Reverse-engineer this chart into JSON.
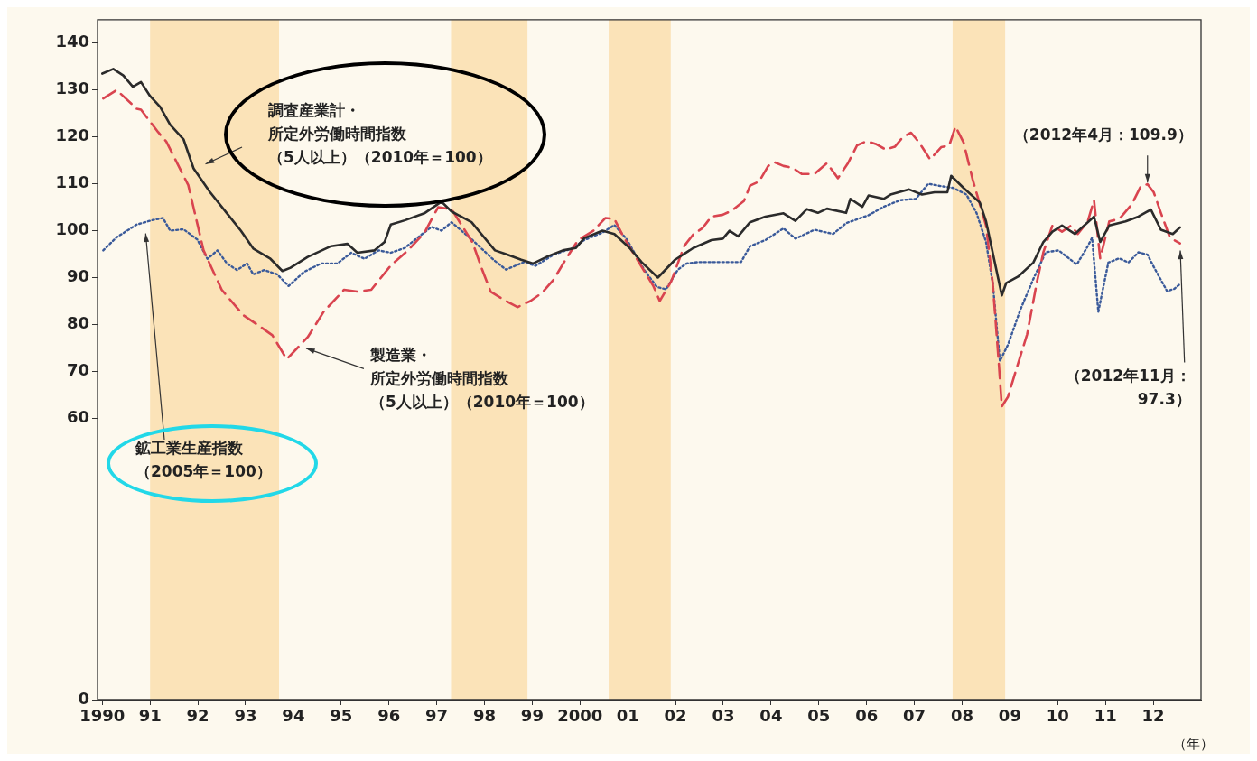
{
  "chart_data": {
    "type": "line",
    "xlabel": "（年）",
    "xlim": [
      1989.9,
      2013
    ],
    "xticks": [
      {
        "value": 1990,
        "label": "1990"
      },
      {
        "value": 1991,
        "label": "91"
      },
      {
        "value": 1992,
        "label": "92"
      },
      {
        "value": 1993,
        "label": "93"
      },
      {
        "value": 1994,
        "label": "94"
      },
      {
        "value": 1995,
        "label": "95"
      },
      {
        "value": 1996,
        "label": "96"
      },
      {
        "value": 1997,
        "label": "97"
      },
      {
        "value": 1998,
        "label": "98"
      },
      {
        "value": 1999,
        "label": "99"
      },
      {
        "value": 2000,
        "label": "2000"
      },
      {
        "value": 2001,
        "label": "01"
      },
      {
        "value": 2002,
        "label": "02"
      },
      {
        "value": 2003,
        "label": "03"
      },
      {
        "value": 2004,
        "label": "04"
      },
      {
        "value": 2005,
        "label": "05"
      },
      {
        "value": 2006,
        "label": "06"
      },
      {
        "value": 2007,
        "label": "07"
      },
      {
        "value": 2008,
        "label": "08"
      },
      {
        "value": 2009,
        "label": "09"
      },
      {
        "value": 2010,
        "label": "10"
      },
      {
        "value": 2011,
        "label": "11"
      },
      {
        "value": 2012,
        "label": "12"
      }
    ],
    "ylim": [
      0,
      145
    ],
    "yticks": [
      0,
      60,
      70,
      80,
      90,
      100,
      110,
      120,
      130,
      140
    ],
    "bands": [
      {
        "axis": "x",
        "from": 1991.0,
        "to": 1993.7,
        "color": "#fbe3b8"
      },
      {
        "axis": "x",
        "from": 1997.3,
        "to": 1998.9,
        "color": "#fbe3b8"
      },
      {
        "axis": "x",
        "from": 2000.6,
        "to": 2001.9,
        "color": "#fbe3b8"
      },
      {
        "axis": "x",
        "from": 2007.8,
        "to": 2008.9,
        "color": "#fbe3b8"
      }
    ],
    "series": [
      {
        "color": "#2b2b2b",
        "line_style": "solid",
        "x": [
          1990.0,
          1990.23,
          1990.44,
          1990.64,
          1990.81,
          1991.0,
          1991.21,
          1991.42,
          1991.7,
          1991.91,
          1992.25,
          1992.61,
          1992.9,
          1993.16,
          1993.52,
          1993.77,
          1993.94,
          1994.3,
          1994.79,
          1995.13,
          1995.34,
          1995.7,
          1995.91,
          1996.04,
          1996.33,
          1996.74,
          1997.1,
          1997.31,
          1997.73,
          1998.22,
          1998.45,
          1998.77,
          1999.02,
          1999.34,
          1999.64,
          1999.91,
          2000.09,
          2000.47,
          2000.72,
          2001.04,
          2001.29,
          2001.63,
          2001.99,
          2002.37,
          2002.75,
          2002.99,
          2003.13,
          2003.31,
          2003.56,
          2003.88,
          2004.26,
          2004.51,
          2004.75,
          2004.98,
          2005.17,
          2005.57,
          2005.66,
          2005.91,
          2006.04,
          2006.36,
          2006.5,
          2006.89,
          2007.16,
          2007.42,
          2007.69,
          2007.77,
          2008.03,
          2008.37,
          2008.5,
          2008.83,
          2008.92,
          2009.17,
          2009.49,
          2009.7,
          2009.89,
          2010.09,
          2010.36,
          2010.76,
          2010.89,
          2011.08,
          2011.42,
          2011.69,
          2011.95,
          2012.16,
          2012.41,
          2012.56
        ],
        "values": [
          133.5,
          134.5,
          133.1,
          130.7,
          131.7,
          128.7,
          126.4,
          122.6,
          119.5,
          113.3,
          108.3,
          103.7,
          100,
          96.2,
          94,
          91.4,
          92.1,
          94.4,
          96.7,
          97.2,
          95.3,
          95.8,
          97.6,
          101.3,
          102.2,
          103.7,
          106.2,
          104.1,
          101.8,
          95.8,
          95,
          93.8,
          93,
          94.6,
          95.8,
          96.3,
          98.4,
          100,
          99.3,
          96.3,
          93.3,
          90,
          93.8,
          96.3,
          98,
          98.3,
          100,
          98.8,
          101.8,
          103,
          103.7,
          102.1,
          104.6,
          103.8,
          104.7,
          103.8,
          106.8,
          105.1,
          107.5,
          106.8,
          107.7,
          108.8,
          107.7,
          108.2,
          108.2,
          111.7,
          109.1,
          106,
          102,
          86.2,
          88.8,
          90.2,
          93.2,
          97.6,
          99.8,
          101.1,
          99.3,
          103,
          97.6,
          101.1,
          102,
          103,
          104.5,
          100.2,
          99.3,
          100.7
        ]
      },
      {
        "color": "#d9444f",
        "line_style": "dashed",
        "x": [
          1990.02,
          1990.3,
          1990.72,
          1990.81,
          1991.17,
          1991.34,
          1991.8,
          1992.12,
          1992.5,
          1992.95,
          1993.24,
          1993.56,
          1993.86,
          1994.3,
          1994.64,
          1995.06,
          1995.34,
          1995.63,
          1996.04,
          1996.4,
          1996.74,
          1997.03,
          1997.31,
          1997.75,
          1997.94,
          1998.13,
          1998.45,
          1998.69,
          1998.96,
          1999.2,
          1999.45,
          1999.72,
          1999.96,
          2000.28,
          2000.53,
          2000.72,
          2000.91,
          2001.23,
          2001.53,
          2001.67,
          2001.91,
          2002.18,
          2002.37,
          2002.56,
          2002.75,
          2002.99,
          2003.18,
          2003.43,
          2003.56,
          2003.75,
          2003.94,
          2004.07,
          2004.26,
          2004.45,
          2004.64,
          2004.91,
          2005.17,
          2005.4,
          2005.61,
          2005.8,
          2006.0,
          2006.19,
          2006.4,
          2006.59,
          2006.76,
          2006.93,
          2007.1,
          2007.33,
          2007.56,
          2007.73,
          2007.86,
          2008.03,
          2008.22,
          2008.5,
          2008.64,
          2008.77,
          2008.83,
          2008.96,
          2009.09,
          2009.36,
          2009.56,
          2009.7,
          2009.89,
          2010.09,
          2010.28,
          2010.42,
          2010.63,
          2010.76,
          2010.89,
          2011.08,
          2011.29,
          2011.55,
          2011.74,
          2011.88,
          2012.01,
          2012.16,
          2012.35,
          2012.56
        ],
        "values": [
          128.2,
          130,
          126,
          125.8,
          121,
          119,
          109.7,
          95.8,
          87.4,
          82,
          80,
          77.7,
          72.6,
          77.3,
          82.8,
          87.4,
          87,
          87.4,
          92.6,
          95.8,
          99.5,
          105,
          104.6,
          97.5,
          92,
          87,
          85,
          83.7,
          85,
          86.7,
          89.6,
          94.2,
          98,
          100,
          102.7,
          102.5,
          98.7,
          93.3,
          88.3,
          85,
          89.2,
          96.7,
          99.2,
          100.5,
          103,
          103.4,
          104.3,
          106.3,
          109.6,
          110.5,
          113.8,
          114.6,
          113.8,
          113.4,
          112.1,
          112.1,
          114.4,
          111.2,
          114.4,
          118.2,
          119.1,
          118.5,
          117.3,
          117.9,
          120,
          120.9,
          118.8,
          115.2,
          117.8,
          118.2,
          122.2,
          118.8,
          110.9,
          101.1,
          88.8,
          71.3,
          62.5,
          64.6,
          69,
          77.9,
          88.8,
          95.4,
          101.1,
          99.8,
          101.1,
          99.3,
          102,
          106.5,
          94.1,
          102,
          102.5,
          105.6,
          109.5,
          109.9,
          108.2,
          103.8,
          98.5,
          97.3
        ]
      },
      {
        "color": "#3a5a9a",
        "line_style": "dotted",
        "x": [
          1990.02,
          1990.3,
          1990.72,
          1991.06,
          1991.27,
          1991.42,
          1991.7,
          1991.99,
          1992.2,
          1992.41,
          1992.61,
          1992.82,
          1993.03,
          1993.16,
          1993.39,
          1993.66,
          1993.9,
          1994.22,
          1994.58,
          1994.92,
          1995.21,
          1995.49,
          1995.78,
          1996.04,
          1996.33,
          1996.61,
          1996.89,
          1997.1,
          1997.31,
          1997.75,
          1998.2,
          1998.45,
          1998.83,
          1999.07,
          1999.45,
          1999.83,
          2000.09,
          2000.47,
          2000.72,
          2000.97,
          2001.34,
          2001.61,
          2001.8,
          2002.05,
          2002.23,
          2002.48,
          2002.94,
          2003.37,
          2003.56,
          2003.88,
          2004.26,
          2004.51,
          2004.91,
          2005.3,
          2005.57,
          2006.04,
          2006.36,
          2006.7,
          2007.03,
          2007.29,
          2007.56,
          2007.82,
          2008.09,
          2008.3,
          2008.5,
          2008.64,
          2008.79,
          2008.96,
          2009.22,
          2009.49,
          2009.75,
          2010.02,
          2010.4,
          2010.63,
          2010.72,
          2010.85,
          2011.06,
          2011.29,
          2011.48,
          2011.69,
          2011.88,
          2012.01,
          2012.29,
          2012.44,
          2012.58
        ],
        "values": [
          95.8,
          98.6,
          101.3,
          102.3,
          102.7,
          100,
          100.3,
          98.1,
          94,
          95.8,
          93,
          91.6,
          93,
          90.7,
          91.6,
          90.7,
          88.2,
          91.2,
          93,
          93,
          95.3,
          94,
          95.8,
          95.3,
          96.3,
          98.6,
          100.8,
          100,
          101.8,
          98,
          93.7,
          91.7,
          93.3,
          92.5,
          94.9,
          96.2,
          98,
          99.6,
          101.2,
          98.3,
          91.7,
          88,
          87.5,
          91.7,
          93,
          93.3,
          93.3,
          93.3,
          96.7,
          98,
          100.5,
          98.3,
          100.2,
          99.3,
          101.6,
          103.3,
          105.1,
          106.5,
          106.8,
          110,
          109.5,
          109.1,
          107.7,
          103.8,
          97.6,
          88.8,
          72.2,
          75.7,
          83.2,
          89.7,
          95.4,
          95.8,
          92.8,
          96.7,
          98.5,
          82.7,
          93.2,
          94.1,
          93.2,
          95.4,
          94.9,
          92.3,
          87.1,
          87.6,
          88.8
        ]
      }
    ],
    "annotations": [
      "調査産業計・所定外労働時間指数（5人以上）（2010年＝100）",
      {
        "text": "製造業・所定外労働時間指数（5人以上）（2010年＝100）",
        "x": 1994.19,
        "y": 75.2
      },
      "鉱工業生産指数（2005年＝100）",
      {
        "text": "（2012年4月：109.9）",
        "x": 2011.88,
        "y": 109.9
      },
      {
        "text": "（2012年11月：97.3）",
        "x": 2012.56,
        "y": 97.3
      }
    ]
  }
}
